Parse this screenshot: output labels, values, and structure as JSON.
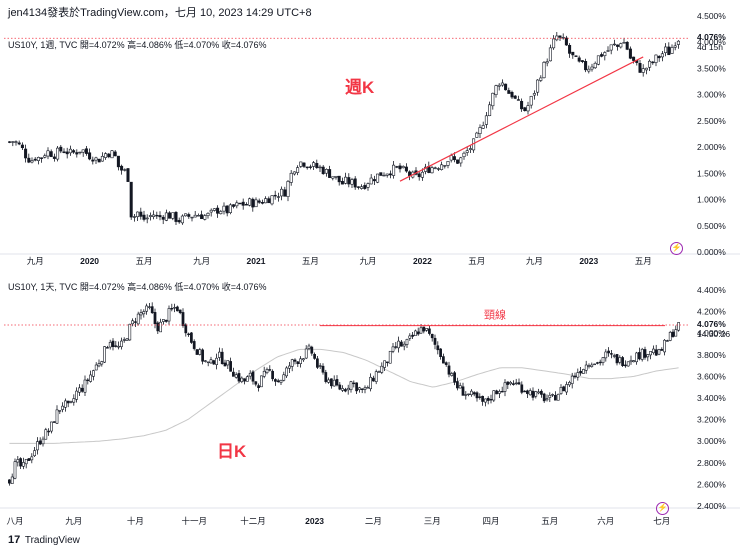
{
  "header": {
    "text": "jen4134發表於TradingView.com，七月 10, 2023 14:29 UTC+8"
  },
  "footer": {
    "logo": "17",
    "brand": "TradingView"
  },
  "colors": {
    "up": "#131722",
    "down": "#131722",
    "annotation": "#f23645",
    "ma": "#c8c8c8",
    "grid": "#f0f3fa",
    "accent": "#9c27b0"
  },
  "icons": {
    "badge": "lightning-icon",
    "footer_logo": "tradingview-logo-icon"
  },
  "chart_data": [
    {
      "type": "candlestick",
      "title": "US10Y, 1週, TVC",
      "legend": "US10Y, 1週, TVC  開=4.072%  高=4.086%  低=4.070%  收=4.076%",
      "ohlc": {
        "open": "4.072%",
        "high": "4.086%",
        "low": "4.070%",
        "close": "4.076%"
      },
      "annotation": "週K",
      "price_label": "4.076%",
      "countdown": "4d 15h",
      "ylim": [
        0.0,
        4.5
      ],
      "y_ticks": [
        0.0,
        0.5,
        1.0,
        1.5,
        2.0,
        2.5,
        3.0,
        3.5,
        4.0,
        4.5
      ],
      "y_tick_labels": [
        "0.000%",
        "0.500%",
        "1.000%",
        "1.500%",
        "2.000%",
        "2.500%",
        "3.000%",
        "3.500%",
        "4.000%",
        "4.500%"
      ],
      "x_labels": [
        "九月",
        "2020",
        "五月",
        "九月",
        "2021",
        "五月",
        "九月",
        "2022",
        "五月",
        "九月",
        "2023",
        "五月"
      ],
      "x_label_index": [
        8,
        25,
        42,
        60,
        77,
        94,
        112,
        129,
        146,
        164,
        181,
        198
      ],
      "bars": 210,
      "series": [
        {
          "name": "weekly-close",
          "values": [
            2.1,
            2.12,
            2.05,
            1.95,
            1.8,
            1.75,
            1.82,
            1.78,
            1.88,
            1.92,
            1.85,
            1.9,
            1.95,
            1.92,
            1.88,
            1.9,
            1.95,
            1.93,
            1.85,
            1.82,
            1.75,
            1.8,
            1.88,
            1.9,
            1.85,
            1.6,
            1.55,
            1.5,
            0.55,
            0.8,
            0.65,
            0.62,
            0.68,
            0.72,
            0.65,
            0.7,
            0.72,
            0.68,
            0.64,
            0.6,
            0.65,
            0.68,
            0.7,
            0.72,
            0.7,
            0.68,
            0.72,
            0.78,
            0.82,
            0.8,
            0.78,
            0.85,
            0.88,
            0.92,
            0.9,
            0.95,
            0.93,
            0.95,
            0.98,
            1.02,
            1.05,
            1.1,
            1.13,
            1.15,
            1.4,
            1.6,
            1.7,
            1.72,
            1.68,
            1.65,
            1.62,
            1.6,
            1.55,
            1.5,
            1.45,
            1.38,
            1.3,
            1.35,
            1.32,
            1.3,
            1.25,
            1.28,
            1.35,
            1.4,
            1.45,
            1.5,
            1.52,
            1.55,
            1.58,
            1.6,
            1.55,
            1.5,
            1.45,
            1.42,
            1.48,
            1.55,
            1.6,
            1.62,
            1.65,
            1.7,
            1.75,
            1.78,
            1.72,
            1.75,
            1.85,
            1.95,
            2.05,
            2.2,
            2.4,
            2.65,
            2.85,
            3.1,
            3.25,
            3.2,
            3.05,
            3.0,
            2.85,
            2.75,
            2.7,
            2.85,
            3.05,
            3.3,
            3.5,
            3.7,
            3.9,
            4.12,
            4.05,
            4.0,
            3.8,
            3.7,
            3.6,
            3.55,
            3.5,
            3.55,
            3.65,
            3.75,
            3.8,
            3.85,
            3.95,
            3.9,
            4.05,
            3.95,
            3.7,
            3.6,
            3.5,
            3.45,
            3.55,
            3.6,
            3.7,
            3.75,
            3.85,
            3.8,
            4.0,
            4.076
          ]
        }
      ]
    },
    {
      "type": "candlestick",
      "title": "US10Y, 1天, TVC",
      "legend": "US10Y, 1天, TVC  開=4.072%  高=4.086%  低=4.070%  收=4.076%",
      "ohlc": {
        "open": "4.072%",
        "high": "4.086%",
        "low": "4.070%",
        "close": "4.076%"
      },
      "annotation": "日K",
      "neckline_label": "頸線",
      "neckline_value": 4.07,
      "price_label": "4.076%",
      "countdown": "14:30:26",
      "ylim": [
        2.4,
        4.4
      ],
      "y_ticks": [
        2.4,
        2.6,
        2.8,
        3.0,
        3.2,
        3.4,
        3.6,
        3.8,
        4.0,
        4.2,
        4.4
      ],
      "y_tick_labels": [
        "2.400%",
        "2.600%",
        "2.800%",
        "3.000%",
        "3.200%",
        "3.400%",
        "3.600%",
        "3.800%",
        "4.000%",
        "4.200%",
        "4.400%"
      ],
      "x_labels": [
        "八月",
        "九月",
        "十月",
        "十一月",
        "十二月",
        "2023",
        "二月",
        "三月",
        "四月",
        "五月",
        "六月",
        "七月"
      ],
      "x_label_index": [
        2,
        23,
        45,
        66,
        87,
        109,
        130,
        151,
        172,
        193,
        213,
        233
      ],
      "bars": 240,
      "ma": [
        2.98,
        2.98,
        2.98,
        2.99,
        3.0,
        3.02,
        3.05,
        3.1,
        3.2,
        3.35,
        3.5,
        3.65,
        3.78,
        3.85,
        3.85,
        3.82,
        3.75,
        3.65,
        3.55,
        3.5,
        3.55,
        3.62,
        3.68,
        3.68,
        3.65,
        3.62,
        3.58,
        3.58,
        3.6,
        3.65,
        3.68
      ],
      "series": [
        {
          "name": "daily-close",
          "values": [
            2.65,
            2.8,
            2.75,
            2.85,
            2.95,
            3.05,
            3.1,
            3.25,
            3.35,
            3.3,
            3.45,
            3.5,
            3.6,
            3.7,
            3.8,
            3.95,
            3.85,
            3.9,
            4.05,
            4.15,
            4.2,
            4.22,
            4.05,
            4.1,
            4.2,
            4.25,
            4.1,
            3.95,
            3.85,
            3.75,
            3.7,
            3.8,
            3.75,
            3.68,
            3.6,
            3.55,
            3.6,
            3.52,
            3.6,
            3.65,
            3.55,
            3.6,
            3.72,
            3.75,
            3.8,
            3.85,
            3.7,
            3.6,
            3.55,
            3.5,
            3.48,
            3.55,
            3.5,
            3.45,
            3.55,
            3.65,
            3.7,
            3.8,
            3.9,
            3.88,
            3.95,
            4.02,
            4.05,
            3.95,
            3.85,
            3.75,
            3.6,
            3.5,
            3.45,
            3.42,
            3.38,
            3.35,
            3.42,
            3.48,
            3.5,
            3.55,
            3.52,
            3.48,
            3.45,
            3.42,
            3.4,
            3.38,
            3.45,
            3.5,
            3.58,
            3.65,
            3.7,
            3.75,
            3.72,
            3.8,
            3.78,
            3.75,
            3.74,
            3.78,
            3.8,
            3.82,
            3.85,
            3.8,
            3.9,
            4.0,
            4.076
          ]
        }
      ]
    }
  ]
}
